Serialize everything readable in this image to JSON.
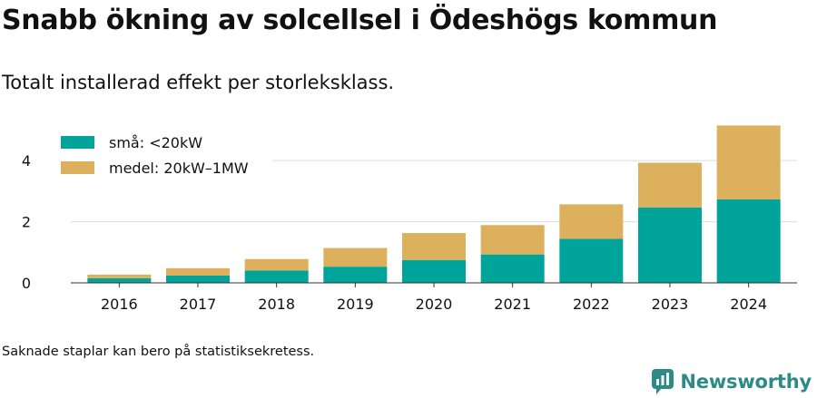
{
  "title": "Snabb ökning av solcellsel i Ödeshögs kommun",
  "subtitle": "Totalt installerad effekt per storleksklass.",
  "footnote": "Saknade staplar kan bero på statistiksekretess.",
  "brand": {
    "name": "Newsworthy",
    "icon": "newsworthy-logo-icon",
    "color": "#2c8b87"
  },
  "chart_data": {
    "type": "bar",
    "stacked": true,
    "categories": [
      "2016",
      "2017",
      "2018",
      "2019",
      "2020",
      "2021",
      "2022",
      "2023",
      "2024"
    ],
    "series": [
      {
        "name": "små: <20kW",
        "color": "#00a49a",
        "values": [
          0.15,
          0.24,
          0.4,
          0.53,
          0.75,
          0.93,
          1.44,
          2.47,
          2.73
        ]
      },
      {
        "name": "medel: 20kW–1MW",
        "color": "#dcb05c",
        "values": [
          0.12,
          0.24,
          0.38,
          0.61,
          0.88,
          0.96,
          1.13,
          1.46,
          2.42
        ]
      }
    ],
    "yticks": [
      0,
      2,
      4
    ],
    "ylim": [
      0,
      5.4
    ],
    "grid": true,
    "legend": "top-left"
  }
}
